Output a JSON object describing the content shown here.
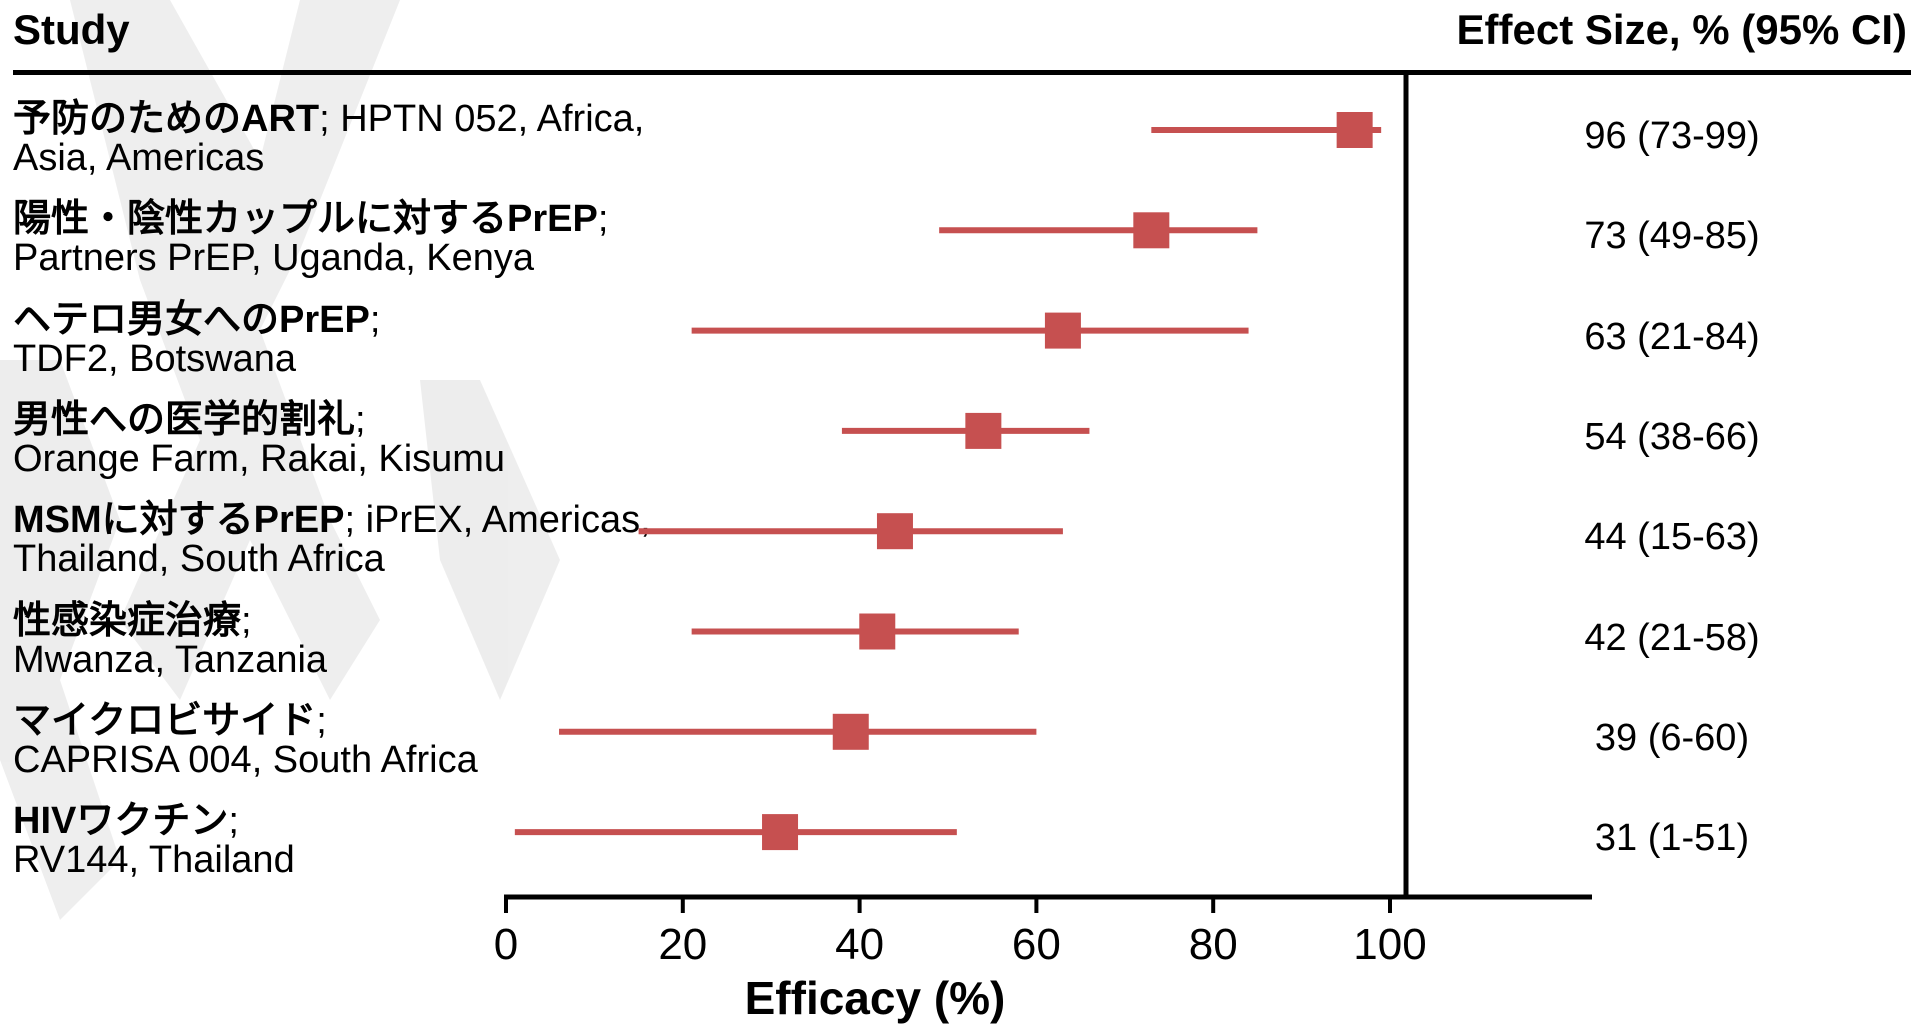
{
  "header": {
    "study_label": "Study",
    "effect_label": "Effect Size, % (95% CI)"
  },
  "studies": [
    {
      "title": "予防のためのART",
      "detail": "; HPTN 052, Africa,",
      "detail2": "Asia, Americas",
      "effect": "96 (73-99)"
    },
    {
      "title": "陽性・陰性カップルに対するPrEP",
      "detail": ";",
      "detail2": "Partners PrEP, Uganda, Kenya",
      "effect": "73 (49-85)"
    },
    {
      "title": "ヘテロ男女へのPrEP",
      "detail": ";",
      "detail2": "TDF2, Botswana",
      "effect": "63 (21-84)"
    },
    {
      "title": "男性への医学的割礼",
      "detail": ";",
      "detail2": "Orange Farm, Rakai, Kisumu",
      "effect": "54 (38-66)"
    },
    {
      "title": "MSMに対するPrEP",
      "detail": "; iPrEX, Americas,",
      "detail2": "Thailand, South Africa",
      "effect": "44 (15-63)"
    },
    {
      "title": "性感染症治療",
      "detail": ";",
      "detail2": "Mwanza, Tanzania",
      "effect": "42 (21-58)"
    },
    {
      "title": "マイクロビサイド",
      "detail": ";",
      "detail2": "CAPRISA 004, South Africa",
      "effect": "39 (6-60)"
    },
    {
      "title": "HIVワクチン",
      "detail": ";",
      "detail2": "RV144, Thailand",
      "effect": "31 (1-51)"
    }
  ],
  "chart_data": {
    "type": "forest",
    "xlabel": "Efficacy (%)",
    "xlim": [
      0,
      100
    ],
    "xticks": [
      0,
      20,
      40,
      60,
      80,
      100
    ],
    "reference_line": 100,
    "points": [
      {
        "estimate": 96,
        "lower": 73,
        "upper": 99
      },
      {
        "estimate": 73,
        "lower": 49,
        "upper": 85
      },
      {
        "estimate": 63,
        "lower": 21,
        "upper": 84
      },
      {
        "estimate": 54,
        "lower": 38,
        "upper": 66
      },
      {
        "estimate": 44,
        "lower": 15,
        "upper": 63
      },
      {
        "estimate": 42,
        "lower": 21,
        "upper": 58
      },
      {
        "estimate": 39,
        "lower": 6,
        "upper": 60
      },
      {
        "estimate": 31,
        "lower": 1,
        "upper": 51
      }
    ],
    "colors": {
      "marker": "#c65050",
      "axis": "#000000",
      "ribbon": "#ececec"
    }
  }
}
